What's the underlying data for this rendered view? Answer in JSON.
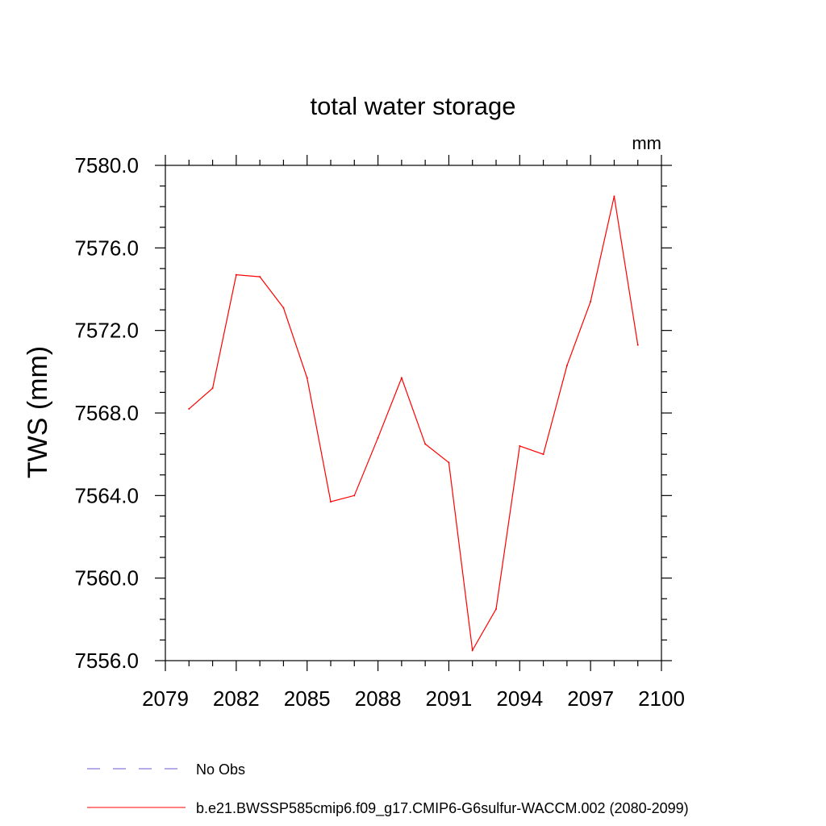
{
  "chart_data": {
    "type": "line",
    "title": "total water storage",
    "units_label": "mm",
    "ylabel": "TWS  (mm)",
    "xlabel": "",
    "xlim": [
      2079,
      2100
    ],
    "ylim": [
      7556.0,
      7580.0
    ],
    "x_ticks": [
      "2079",
      "2082",
      "2085",
      "2088",
      "2091",
      "2094",
      "2097",
      "2100"
    ],
    "y_ticks": [
      "7556.0",
      "7560.0",
      "7564.0",
      "7568.0",
      "7572.0",
      "7576.0",
      "7580.0"
    ],
    "grid": false,
    "legend": [
      {
        "label": "No Obs",
        "style": "dashed",
        "color": "#6a5acd"
      },
      {
        "label": "b.e21.BWSSP585cmip6.f09_g17.CMIP6-G6sulfur-WACCM.002 (2080-2099)",
        "style": "solid",
        "color": "#ff0000"
      }
    ],
    "series": [
      {
        "name": "b.e21.BWSSP585cmip6.f09_g17.CMIP6-G6sulfur-WACCM.002 (2080-2099)",
        "color": "#ff0000",
        "x": [
          2080,
          2081,
          2082,
          2083,
          2084,
          2085,
          2086,
          2087,
          2088,
          2089,
          2090,
          2091,
          2092,
          2093,
          2094,
          2095,
          2096,
          2097,
          2098,
          2099
        ],
        "y": [
          7568.2,
          7569.2,
          7574.7,
          7574.6,
          7573.1,
          7569.7,
          7563.7,
          7564.0,
          7566.8,
          7569.7,
          7566.5,
          7565.6,
          7556.5,
          7558.5,
          7566.4,
          7566.0,
          7570.3,
          7573.4,
          7578.5,
          7571.3
        ]
      }
    ]
  }
}
